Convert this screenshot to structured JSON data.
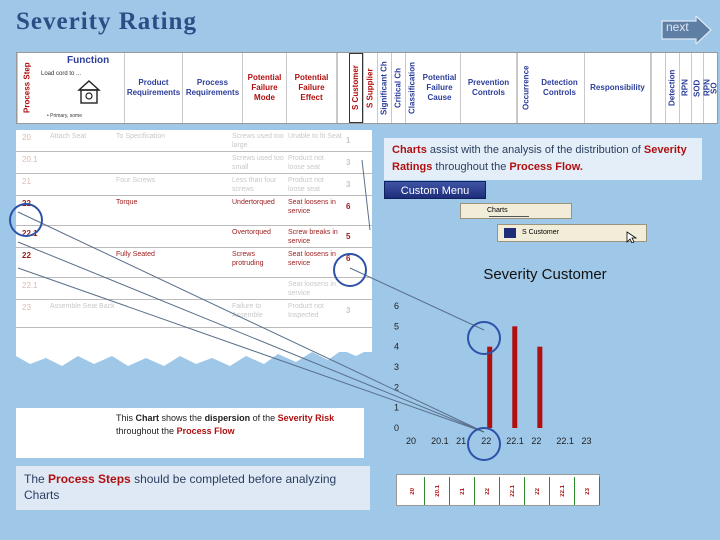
{
  "title": "Severity Rating",
  "next_label": "next",
  "header": {
    "process_step": "Process Step",
    "function": "Function",
    "function_sub1": "Load cord to ...",
    "function_sub2": "• Primary, some",
    "product_requirements": "Product Requirements",
    "process_requirements": "Process Requirements",
    "potential_failure_mode": "Potential Failure Mode",
    "potential_failure_effect": "Potential Failure Effect",
    "s_customer": "S Customer",
    "s_supplier": "S Supplier",
    "significant_ch": "Significant Ch",
    "critical_ch": "Critical Ch",
    "classification": "Classification",
    "potential_failure_cause": "Potential Failure Cause",
    "prevention_controls": "Prevention Controls",
    "occurrence": "Occurrence",
    "detection_controls": "Detection Controls",
    "responsibility": "Responsibility",
    "detection": "Detection",
    "rpn": "RPN",
    "sod": "SOD",
    "rpn2": "RPN",
    "so": "SO"
  },
  "sheet_rows": [
    {
      "step": "20",
      "req": "Attach Seat",
      "proc": "To Specification",
      "mode": "Screws used too large",
      "effect": "Unable to fit Seat",
      "sev": "1",
      "style": "faded"
    },
    {
      "step": "20.1",
      "req": "",
      "proc": "",
      "mode": "Screws used too small",
      "effect": "Product not loose seat",
      "sev": "3",
      "style": "faded"
    },
    {
      "step": "21",
      "req": "",
      "proc": "Four Screws",
      "mode": "Less than four screws",
      "effect": "Product not loose seat",
      "sev": "3",
      "style": "faded"
    },
    {
      "step": "22",
      "req": "",
      "proc": "Torque",
      "mode": "Undertorqued",
      "effect": "Seat loosens in service",
      "sev": "6",
      "style": "hl"
    },
    {
      "step": "22.1",
      "req": "",
      "proc": "",
      "mode": "Overtorqued",
      "effect": "Screw breaks in service",
      "sev": "5",
      "style": "hl"
    },
    {
      "step": "22",
      "req": "",
      "proc": "Fully Seated",
      "mode": "Screws protruding",
      "effect": "Seat loosens in service",
      "sev": "6",
      "style": "hl"
    },
    {
      "step": "22.1",
      "req": "",
      "proc": "",
      "mode": "",
      "effect": "Seat loosens in service",
      "sev": "",
      "style": "faded"
    },
    {
      "step": "23",
      "req": "Assemble Seat Back",
      "proc": "",
      "mode": "Failure to Assemble",
      "effect": "Product not Inspected",
      "sev": "3",
      "style": "faded"
    }
  ],
  "charts_note": {
    "w1": "Charts",
    "w2": " assist with the analysis of the distribution of ",
    "w3": "Severity Ratings",
    "w4": " throughout the ",
    "w5": "Process Flow."
  },
  "custom_menu": "Custom Menu",
  "charts_select": "Charts",
  "s_customer_select": "S Customer",
  "dispersion_note": {
    "w1": "This ",
    "w2": "Chart",
    "w3": " shows the ",
    "w4": "dispersion",
    "w5": " of the ",
    "w6": "Severity Risk",
    "w7": " throughout the ",
    "w8": "Process Flow"
  },
  "steps_note": {
    "w1": "The ",
    "w2": "Process Steps",
    "w3": " should be completed before analyzing Charts"
  },
  "bottom_strip": [
    "20",
    "20.1",
    "21",
    "22",
    "22.1",
    "22",
    "22.1",
    "23"
  ],
  "colors": {
    "accent_red": "#b01010",
    "bar": "#b01010",
    "background": "#9ec7e8",
    "circle": "#2d52a8"
  },
  "chart_data": {
    "type": "bar",
    "title": "Severity Customer",
    "categories": [
      "20",
      "20.1",
      "21",
      "22",
      "22.1",
      "22",
      "22.1",
      "23"
    ],
    "values": [
      0,
      0,
      0,
      4,
      5,
      4,
      0,
      0
    ],
    "ylim": [
      0,
      6
    ],
    "yticks": [
      0,
      1,
      2,
      3,
      4,
      5,
      6
    ],
    "grid": false,
    "legend": "none"
  }
}
